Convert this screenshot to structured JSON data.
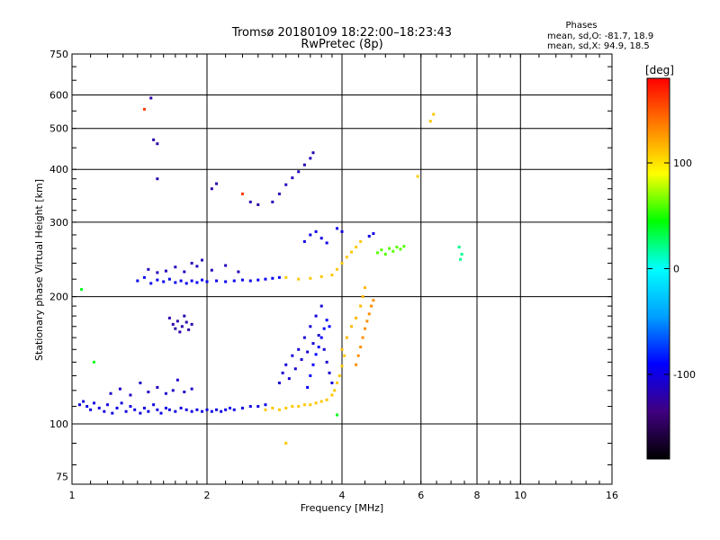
{
  "chart_data": {
    "type": "scatter",
    "title": "Tromsø 20180109 18:22:00–18:23:43",
    "subtitle": "RwPretec (8p)",
    "xlabel": "Frequency [MHz]",
    "ylabel": "Stationary phase Virtual Height [km]",
    "x_scale": "log",
    "y_scale": "log",
    "xlim": [
      1,
      16
    ],
    "ylim": [
      72,
      750
    ],
    "x_ticks": [
      1,
      2,
      4,
      6,
      8,
      10,
      16
    ],
    "y_ticks": [
      75,
      100,
      200,
      300,
      400,
      500,
      600,
      750
    ],
    "x_grid": [
      1,
      2,
      4,
      6,
      8,
      10,
      16
    ],
    "y_grid": [
      100,
      200,
      300,
      400,
      500,
      600,
      750
    ],
    "phase_info": {
      "title": "Phases",
      "line1": "mean, sd,O: -81.7, 18.9",
      "line2": "mean, sd,X:  94.9, 18.5"
    },
    "colorbar": {
      "label": "[deg]",
      "min": -180,
      "max": 180,
      "ticks": [
        100,
        0,
        -100
      ],
      "colors": [
        "#000000",
        "#400080",
        "#0000ff",
        "#00a0ff",
        "#00ffff",
        "#00ff00",
        "#ffff00",
        "#ff8000",
        "#ff0000"
      ]
    },
    "series": [
      {
        "phase": -100,
        "points": [
          [
            1.04,
            111
          ],
          [
            1.06,
            113
          ],
          [
            1.08,
            110
          ],
          [
            1.1,
            108
          ],
          [
            1.12,
            112
          ],
          [
            1.15,
            109
          ],
          [
            1.18,
            107
          ],
          [
            1.2,
            111
          ],
          [
            1.23,
            106
          ],
          [
            1.26,
            109
          ],
          [
            1.29,
            112
          ],
          [
            1.32,
            107
          ],
          [
            1.35,
            110
          ],
          [
            1.38,
            108
          ],
          [
            1.42,
            106
          ],
          [
            1.45,
            109
          ],
          [
            1.48,
            107
          ],
          [
            1.52,
            111
          ],
          [
            1.55,
            108
          ],
          [
            1.58,
            106
          ],
          [
            1.62,
            109
          ],
          [
            1.65,
            108
          ],
          [
            1.7,
            107
          ],
          [
            1.75,
            109
          ],
          [
            1.8,
            108
          ],
          [
            1.85,
            107
          ],
          [
            1.9,
            108
          ],
          [
            1.95,
            107
          ],
          [
            2.0,
            108
          ],
          [
            2.05,
            107
          ],
          [
            2.1,
            108
          ],
          [
            2.15,
            107
          ],
          [
            2.2,
            108
          ],
          [
            2.25,
            109
          ],
          [
            2.3,
            108
          ],
          [
            2.4,
            109
          ],
          [
            2.5,
            110
          ],
          [
            2.6,
            110
          ],
          [
            2.7,
            111
          ]
        ]
      },
      {
        "phase": -110,
        "points": [
          [
            1.22,
            118
          ],
          [
            1.28,
            121
          ],
          [
            1.35,
            117
          ],
          [
            1.42,
            125
          ],
          [
            1.48,
            119
          ],
          [
            1.55,
            122
          ],
          [
            1.62,
            118
          ],
          [
            1.68,
            120
          ],
          [
            1.72,
            127
          ],
          [
            1.78,
            119
          ],
          [
            1.85,
            121
          ]
        ]
      },
      {
        "phase": -95,
        "points": [
          [
            1.4,
            218
          ],
          [
            1.45,
            222
          ],
          [
            1.5,
            215
          ],
          [
            1.55,
            219
          ],
          [
            1.6,
            217
          ],
          [
            1.65,
            220
          ],
          [
            1.7,
            216
          ],
          [
            1.75,
            218
          ],
          [
            1.8,
            215
          ],
          [
            1.85,
            218
          ],
          [
            1.9,
            216
          ],
          [
            1.95,
            219
          ],
          [
            2.0,
            217
          ],
          [
            2.1,
            218
          ],
          [
            2.2,
            217
          ],
          [
            2.3,
            218
          ],
          [
            2.4,
            219
          ],
          [
            2.5,
            218
          ],
          [
            2.6,
            219
          ],
          [
            2.7,
            220
          ],
          [
            2.8,
            221
          ],
          [
            2.9,
            222
          ]
        ]
      },
      {
        "phase": -115,
        "points": [
          [
            1.48,
            232
          ],
          [
            1.55,
            228
          ],
          [
            1.62,
            230
          ],
          [
            1.7,
            235
          ],
          [
            1.78,
            229
          ],
          [
            1.85,
            240
          ],
          [
            1.9,
            236
          ],
          [
            1.95,
            244
          ],
          [
            2.05,
            231
          ],
          [
            2.2,
            237
          ],
          [
            2.35,
            229
          ]
        ]
      },
      {
        "phase": -120,
        "points": [
          [
            1.65,
            178
          ],
          [
            1.68,
            172
          ],
          [
            1.7,
            168
          ],
          [
            1.72,
            175
          ],
          [
            1.74,
            165
          ],
          [
            1.76,
            170
          ],
          [
            1.78,
            180
          ],
          [
            1.8,
            174
          ],
          [
            1.82,
            167
          ],
          [
            1.85,
            172
          ]
        ]
      },
      {
        "phase": 110,
        "points": [
          [
            2.7,
            108
          ],
          [
            2.8,
            109
          ],
          [
            2.9,
            108
          ],
          [
            3.0,
            109
          ],
          [
            3.1,
            110
          ],
          [
            3.2,
            110
          ],
          [
            3.3,
            111
          ],
          [
            3.4,
            111
          ],
          [
            3.5,
            112
          ],
          [
            3.6,
            113
          ],
          [
            3.7,
            114
          ],
          [
            3.8,
            117
          ],
          [
            3.85,
            120
          ],
          [
            3.9,
            125
          ],
          [
            3.95,
            130
          ],
          [
            4.0,
            137
          ],
          [
            4.05,
            145
          ]
        ]
      },
      {
        "phase": 115,
        "points": [
          [
            4.0,
            150
          ],
          [
            4.1,
            160
          ],
          [
            4.2,
            170
          ],
          [
            4.3,
            178
          ],
          [
            4.4,
            190
          ],
          [
            4.45,
            200
          ],
          [
            4.5,
            210
          ]
        ]
      },
      {
        "phase": 130,
        "points": [
          [
            4.3,
            138
          ],
          [
            4.35,
            145
          ],
          [
            4.4,
            152
          ],
          [
            4.45,
            160
          ],
          [
            4.5,
            168
          ],
          [
            4.55,
            175
          ],
          [
            4.6,
            182
          ],
          [
            4.65,
            190
          ],
          [
            4.7,
            196
          ]
        ]
      },
      {
        "phase": 110,
        "points": [
          [
            3.0,
            222
          ],
          [
            3.2,
            220
          ],
          [
            3.4,
            221
          ],
          [
            3.6,
            223
          ],
          [
            3.8,
            225
          ],
          [
            3.9,
            232
          ],
          [
            4.0,
            240
          ],
          [
            4.1,
            248
          ],
          [
            4.2,
            255
          ],
          [
            4.3,
            262
          ],
          [
            4.4,
            270
          ]
        ]
      },
      {
        "phase": 60,
        "points": [
          [
            4.8,
            254
          ],
          [
            4.9,
            258
          ],
          [
            5.0,
            252
          ],
          [
            5.1,
            260
          ],
          [
            5.2,
            256
          ],
          [
            5.3,
            262
          ],
          [
            5.4,
            259
          ],
          [
            5.5,
            263
          ]
        ]
      },
      {
        "phase": -105,
        "points": [
          [
            2.9,
            125
          ],
          [
            2.95,
            132
          ],
          [
            3.0,
            138
          ],
          [
            3.05,
            128
          ],
          [
            3.1,
            145
          ],
          [
            3.15,
            135
          ],
          [
            3.2,
            150
          ],
          [
            3.25,
            142
          ],
          [
            3.3,
            160
          ],
          [
            3.35,
            148
          ],
          [
            3.4,
            170
          ],
          [
            3.45,
            155
          ],
          [
            3.5,
            180
          ],
          [
            3.55,
            162
          ],
          [
            3.6,
            190
          ],
          [
            3.65,
            150
          ],
          [
            3.7,
            140
          ],
          [
            3.75,
            132
          ],
          [
            3.8,
            125
          ]
        ]
      },
      {
        "phase": -90,
        "points": [
          [
            3.35,
            122
          ],
          [
            3.4,
            130
          ],
          [
            3.45,
            138
          ],
          [
            3.5,
            146
          ],
          [
            3.55,
            152
          ],
          [
            3.6,
            160
          ],
          [
            3.65,
            168
          ],
          [
            3.7,
            176
          ],
          [
            3.75,
            170
          ]
        ]
      },
      {
        "phase": -115,
        "points": [
          [
            2.8,
            335
          ],
          [
            2.9,
            350
          ],
          [
            3.0,
            368
          ],
          [
            3.1,
            382
          ],
          [
            3.2,
            395
          ],
          [
            3.3,
            410
          ],
          [
            3.4,
            425
          ],
          [
            3.45,
            438
          ]
        ]
      },
      {
        "phase": -100,
        "points": [
          [
            3.3,
            270
          ],
          [
            3.4,
            280
          ],
          [
            3.5,
            285
          ],
          [
            3.6,
            275
          ],
          [
            3.7,
            268
          ],
          [
            3.9,
            290
          ],
          [
            4.0,
            285
          ],
          [
            4.6,
            278
          ],
          [
            4.7,
            282
          ]
        ]
      },
      {
        "phase": -120,
        "points": [
          [
            1.5,
            590
          ],
          [
            1.52,
            470
          ],
          [
            1.55,
            460
          ],
          [
            1.55,
            380
          ],
          [
            2.05,
            360
          ],
          [
            2.1,
            370
          ],
          [
            2.5,
            335
          ],
          [
            2.6,
            330
          ]
        ]
      },
      {
        "phase": 160,
        "points": [
          [
            1.45,
            555
          ],
          [
            2.4,
            350
          ]
        ]
      },
      {
        "phase": 110,
        "points": [
          [
            5.9,
            385
          ],
          [
            6.3,
            520
          ],
          [
            6.4,
            540
          ],
          [
            3.0,
            90
          ]
        ]
      },
      {
        "phase": 20,
        "points": [
          [
            7.3,
            262
          ],
          [
            7.4,
            252
          ],
          [
            7.35,
            245
          ]
        ]
      },
      {
        "phase": 40,
        "points": [
          [
            1.05,
            208
          ],
          [
            1.12,
            140
          ],
          [
            3.9,
            105
          ]
        ]
      }
    ]
  }
}
